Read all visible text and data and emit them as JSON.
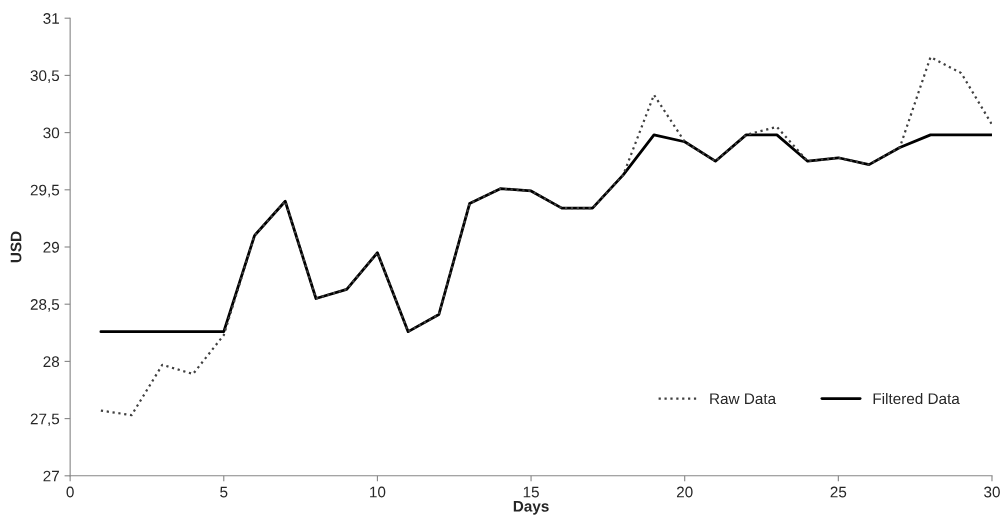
{
  "chart_data": {
    "type": "line",
    "xlabel": "Days",
    "ylabel": "USD",
    "x": [
      1,
      2,
      3,
      4,
      5,
      6,
      7,
      8,
      9,
      10,
      11,
      12,
      13,
      14,
      15,
      16,
      17,
      18,
      19,
      20,
      21,
      22,
      23,
      24,
      25,
      26,
      27,
      28,
      29,
      30
    ],
    "series": [
      {
        "name": "Raw Data",
        "color": "#404040",
        "line_style": "dotted",
        "values": [
          27.57,
          27.53,
          27.97,
          27.89,
          28.23,
          29.1,
          29.4,
          28.55,
          28.63,
          28.95,
          28.26,
          28.41,
          29.38,
          29.51,
          29.49,
          29.34,
          29.34,
          29.63,
          30.33,
          29.92,
          29.75,
          29.98,
          30.05,
          29.75,
          29.78,
          29.72,
          29.87,
          30.66,
          30.52,
          30.07
        ]
      },
      {
        "name": "Filtered Data",
        "color": "#000000",
        "line_style": "solid",
        "values": [
          28.26,
          28.26,
          28.26,
          28.26,
          28.26,
          29.1,
          29.4,
          28.55,
          28.63,
          28.95,
          28.26,
          28.41,
          29.38,
          29.51,
          29.49,
          29.34,
          29.34,
          29.63,
          29.98,
          29.92,
          29.75,
          29.98,
          29.98,
          29.75,
          29.78,
          29.72,
          29.87,
          29.98,
          29.98,
          29.98
        ]
      }
    ],
    "xlim": [
      0,
      30
    ],
    "xticks": [
      0,
      5,
      10,
      15,
      20,
      25,
      30
    ],
    "ylim": [
      27,
      31
    ],
    "yticks": [
      27,
      {
        "value": 27.5,
        "label": "27,5"
      },
      28,
      {
        "value": 28.5,
        "label": "28,5"
      },
      29,
      {
        "value": 29.5,
        "label": "29,5"
      },
      30,
      {
        "value": 30.5,
        "label": "30,5"
      },
      31
    ],
    "grid": false,
    "legend": "bottom right",
    "marker": "none"
  }
}
